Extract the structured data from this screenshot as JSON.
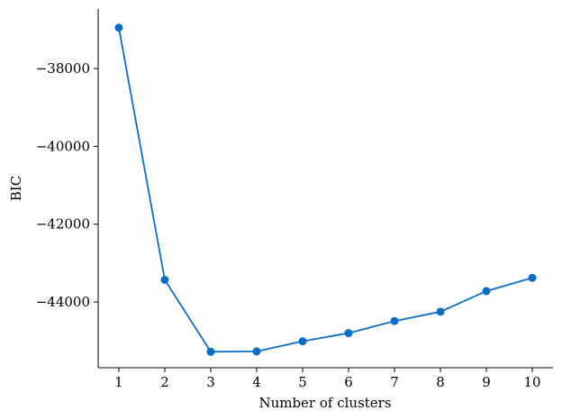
{
  "chart_data": {
    "type": "line",
    "title": "",
    "xlabel": "Number of clusters",
    "ylabel": "BIC",
    "x": [
      1,
      2,
      3,
      4,
      5,
      6,
      7,
      8,
      9,
      10
    ],
    "series": [
      {
        "values": [
          -36950,
          -43430,
          -45280,
          -45270,
          -45010,
          -44800,
          -44490,
          -44250,
          -43720,
          -43380
        ],
        "color": "#0a6ec8",
        "marker": "circle"
      }
    ],
    "xticks": [
      "1",
      "2",
      "3",
      "4",
      "5",
      "6",
      "7",
      "8",
      "9",
      "10"
    ],
    "yticks": [
      -38000,
      -40000,
      -42000,
      -44000
    ],
    "ytick_labels": [
      "−38000",
      "−40000",
      "−42000",
      "−44000"
    ],
    "xlim": [
      0.55,
      10.45
    ],
    "ylim": [
      -45690,
      -36470
    ],
    "grid": false,
    "spines": "left-bottom"
  }
}
